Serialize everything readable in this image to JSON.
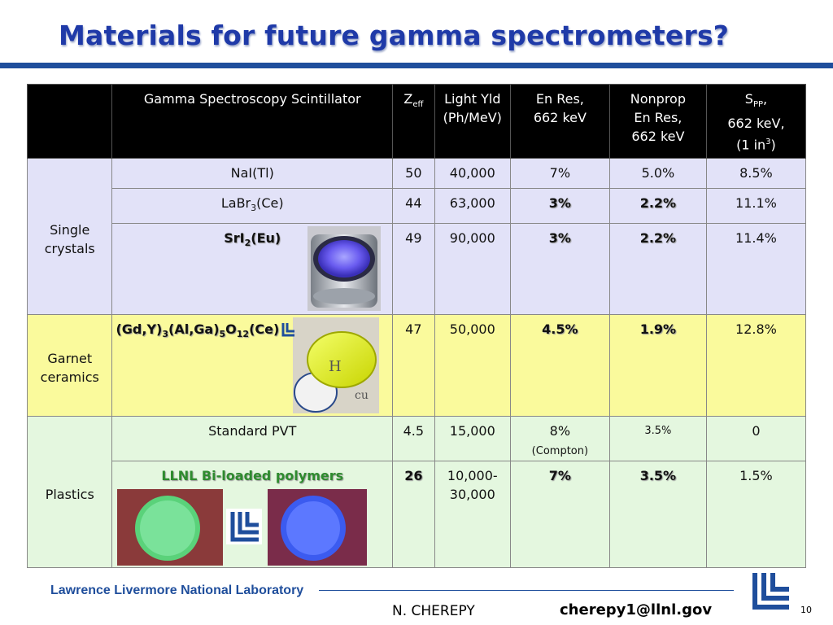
{
  "title": "Materials for future gamma spectrometers?",
  "table": {
    "headers": {
      "scintillator": "Gamma Spectroscopy Scintillator",
      "zeff_main": "Z",
      "zeff_sub": "eff",
      "light_1": "Light Yld",
      "light_2": "(Ph/MeV)",
      "enres_1": "En Res,",
      "enres_2": "662 keV",
      "nonprop_1": "Nonprop",
      "nonprop_2": "En Res,",
      "nonprop_3": "662 keV",
      "spp_main": "S",
      "spp_sub": "PP",
      "spp_1": ",",
      "spp_2": "662 keV,",
      "spp_3": "(1 in",
      "spp_sup": "3",
      "spp_4": ")"
    },
    "groups": {
      "single_1": "Single",
      "single_2": "crystals",
      "garnet_1": "Garnet",
      "garnet_2": "ceramics",
      "plastics": "Plastics"
    },
    "rows": {
      "nai": {
        "name": "NaI(Tl)",
        "zeff": "50",
        "light": "40,000",
        "enres": "7%",
        "nonprop": "5.0%",
        "spp": "8.5%"
      },
      "labr": {
        "name_a": "LaBr",
        "name_sub": "3",
        "name_b": "(Ce)",
        "zeff": "44",
        "light": "63,000",
        "enres": "3%",
        "nonprop": "2.2%",
        "spp": "11.1%"
      },
      "sri": {
        "name_a": "SrI",
        "name_sub": "2",
        "name_b": "(Eu)",
        "zeff": "49",
        "light": "90,000",
        "enres": "3%",
        "nonprop": "2.2%",
        "spp": "11.4%"
      },
      "gyagg": {
        "p1": "(Gd,Y)",
        "s1": "3",
        "p2": "(Al,Ga)",
        "s2": "5",
        "p3": "O",
        "s3": "12",
        "p4": "(Ce)",
        "zeff": "47",
        "light": "50,000",
        "enres": "4.5%",
        "nonprop": "1.9%",
        "spp": "12.8%"
      },
      "pvt": {
        "name": "Standard PVT",
        "zeff": "4.5",
        "light": "15,000",
        "enres": "8%",
        "enres_note": "(Compton)",
        "nonprop": "3.5%",
        "spp": "0"
      },
      "llnl": {
        "name": "LLNL Bi-loaded polymers",
        "zeff": "26",
        "light_1": "10,000-",
        "light_2": "30,000",
        "enres": "7%",
        "nonprop": "3.5%",
        "spp": "1.5%"
      }
    }
  },
  "footer": {
    "lab": "Lawrence Livermore National Laboratory",
    "author": "N. CHEREPY",
    "email": "cherepy1@llnl.gov",
    "page": "10"
  },
  "colors": {
    "title": "#1f3aa8",
    "single_bg": "#e2e2f8",
    "garnet_bg": "#fafa9c",
    "plastic_bg": "#e4f7df",
    "highlight_green": "#2e8b2e",
    "highlight_red": "#cc2222"
  }
}
